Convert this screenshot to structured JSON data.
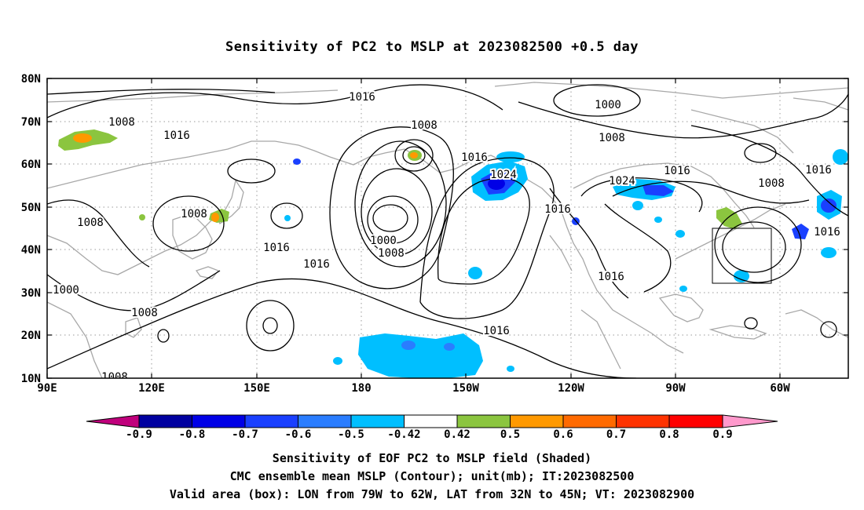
{
  "title": "Sensitivity of PC2 to MSLP at 2023082500 +0.5 day",
  "lat_labels": [
    "80N",
    "70N",
    "60N",
    "50N",
    "40N",
    "30N",
    "20N",
    "10N"
  ],
  "lon_labels": [
    "90E",
    "120E",
    "150E",
    "180",
    "150W",
    "120W",
    "90W",
    "60W"
  ],
  "contour_labels": [
    "1016",
    "1008",
    "1016",
    "1008",
    "1000",
    "1008",
    "1016",
    "1024",
    "1016",
    "1024",
    "1016",
    "1008",
    "1016",
    "1008",
    "1008",
    "1016",
    "1016",
    "1000",
    "1008",
    "1008",
    "1000",
    "1008",
    "1016",
    "1016",
    "1016",
    "1016"
  ],
  "colorbar": {
    "labels": [
      "-0.9",
      "-0.8",
      "-0.7",
      "-0.6",
      "-0.5",
      "-0.42",
      "0.42",
      "0.5",
      "0.6",
      "0.7",
      "0.8",
      "0.9"
    ],
    "colors": [
      "#c0007c",
      "#0000a0",
      "#0000e6",
      "#1a40ff",
      "#2a7dff",
      "#00bfff",
      "#ffffff",
      "#8bc53f",
      "#ff9900",
      "#ff6a00",
      "#ff3300",
      "#ff0000",
      "#ff99cc"
    ]
  },
  "valid_box": {
    "lon_min": -79,
    "lon_max": -62,
    "lat_min": 32,
    "lat_max": 45
  },
  "captions": [
    "Sensitivity of EOF PC2 to MSLP field (Shaded)",
    "CMC ensemble mean MSLP (Contour); unit(mb); IT:2023082500",
    "Valid area (box): LON from 79W to 62W, LAT from 32N to 45N; VT: 2023082900"
  ]
}
